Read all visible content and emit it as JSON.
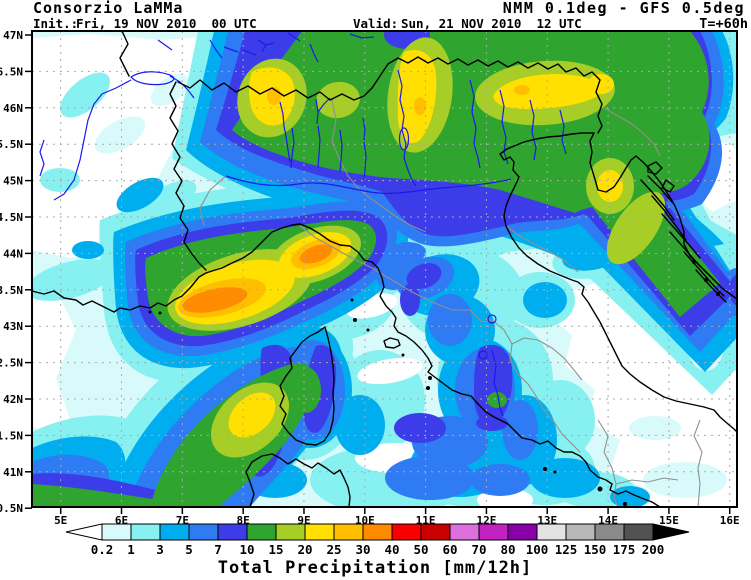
{
  "header": {
    "brand": "Consorzio LaMMa",
    "model": "NMM 0.1deg - GFS 0.5deg",
    "init_label": "Init.:",
    "init_value": "Fri, 19 NOV 2010  00 UTC",
    "valid_label": "Valid:",
    "valid_value": "Sun, 21 NOV 2010  12 UTC",
    "lead_time": "T=+60h",
    "datetime_color": "#1F1FD9"
  },
  "map": {
    "lat_tick_labels": [
      "47N",
      "46.5N",
      "46N",
      "45.5N",
      "45N",
      "44.5N",
      "44N",
      "43.5N",
      "43N",
      "42.5N",
      "42N",
      "41.5N",
      "41N",
      "40.5N"
    ],
    "lon_tick_labels": [
      "5E",
      "6E",
      "7E",
      "8E",
      "9E",
      "10E",
      "11E",
      "12E",
      "13E",
      "14E",
      "15E",
      "16E"
    ],
    "lat_range_deg": [
      40.5,
      47
    ],
    "lon_range_deg": [
      5,
      16
    ],
    "grid_lat_step_deg": 0.5,
    "grid_lon_step_deg": 1
  },
  "colorbar": {
    "title": "Total Precipitation [mm/12h]",
    "unit": "mm/12h",
    "tick_labels": [
      "0.2",
      "1",
      "3",
      "5",
      "7",
      "10",
      "15",
      "20",
      "25",
      "30",
      "40",
      "50",
      "60",
      "70",
      "80",
      "100",
      "125",
      "150",
      "175",
      "200"
    ],
    "thresholds": [
      0.2,
      1,
      3,
      5,
      7,
      10,
      15,
      20,
      25,
      30,
      40,
      50,
      60,
      70,
      80,
      100,
      125,
      150,
      175,
      200
    ],
    "cell_colors": [
      "#D8FAFA",
      "#87F0F0",
      "#00AEF0",
      "#2E7BF3",
      "#3C3CE8",
      "#2FA52F",
      "#A6CE26",
      "#FFE000",
      "#FFBE00",
      "#FF8C00",
      "#F80000",
      "#C80000",
      "#DC6FDC",
      "#C322C3",
      "#8800A8",
      "#E3E3E3",
      "#B8B8B8",
      "#8A8A8A",
      "#525252"
    ],
    "under_range_color": "#FFFFFF",
    "over_range_color": "#000000"
  }
}
